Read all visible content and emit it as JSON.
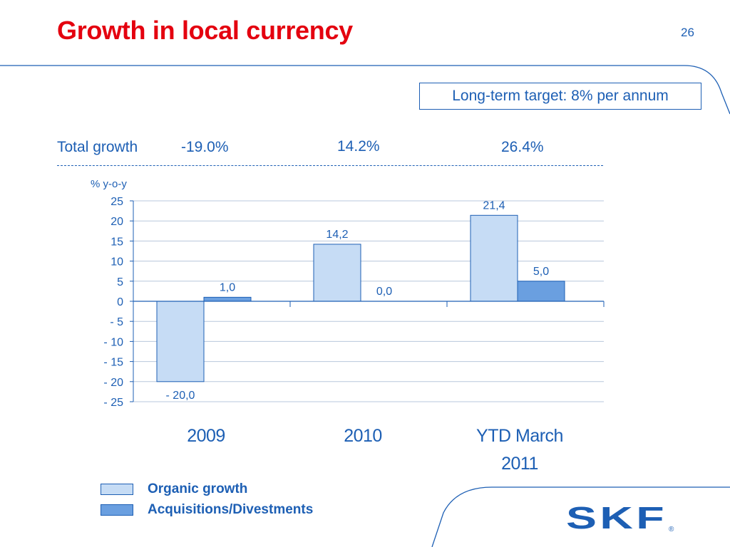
{
  "slide": {
    "title": "Growth in local currency",
    "page_number": "26",
    "target_note": "Long-term target: 8% per annum",
    "total_growth_label": "Total growth",
    "total_growth_values": [
      "-19.0%",
      "14.2%",
      "26.4%"
    ],
    "logo_text": "SKF",
    "logo_mark": "®"
  },
  "colors": {
    "title": "#e4000f",
    "text_blue": "#1d5fb4",
    "organic_fill": "#c6dcf5",
    "acquisition_fill": "#6a9fe0",
    "deco_line": "#1d5fb4"
  },
  "chart_data": {
    "type": "bar",
    "ylabel": "% y-o-y",
    "ylim": [
      -25,
      25
    ],
    "yticks": [
      25,
      20,
      15,
      10,
      5,
      0,
      -5,
      -10,
      -15,
      -20,
      -25
    ],
    "ytick_labels": [
      "25",
      "20",
      "15",
      "10",
      "5",
      "0",
      "- 5",
      "- 10",
      "- 15",
      "- 20",
      "- 25"
    ],
    "categories": [
      "2009",
      "2010",
      "YTD March 2011"
    ],
    "category_lines": [
      [
        "2009"
      ],
      [
        "2010"
      ],
      [
        "YTD March",
        "2011"
      ]
    ],
    "grid": true,
    "legend_position": "bottom-left",
    "series": [
      {
        "name": "Organic growth",
        "values": [
          -20.0,
          14.2,
          21.4
        ],
        "labels": [
          "- 20,0",
          "14,2",
          "21,4"
        ],
        "color": "#c6dcf5"
      },
      {
        "name": "Acquisitions/Divestments",
        "values": [
          1.0,
          0.0,
          5.0
        ],
        "labels": [
          "1,0",
          "0,0",
          "5,0"
        ],
        "color": "#6a9fe0"
      }
    ]
  }
}
